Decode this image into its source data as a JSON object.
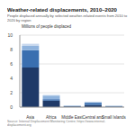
{
  "chart_data": {
    "type": "bar",
    "stacked": true,
    "title": "Weather-related displacements, 2010–2020",
    "subtitle": "People displaced annually by selected weather-related events from 2010 to 2020 by region",
    "y_label": "Millions of people displaced",
    "source": "Source: Internal Displacement Monitoring Centre; https://www.internal-displacement.org",
    "categories": [
      "Asia",
      "Africa",
      "Middle East",
      "Central and South America",
      "Small Islands"
    ],
    "series": [
      {
        "color": "#1f3a68",
        "values": [
          5.5,
          0.9,
          0.1,
          0.3,
          0.05
        ]
      },
      {
        "color": "#3a6fb0",
        "values": [
          2.4,
          0.2,
          0.05,
          0.3,
          0.1
        ]
      },
      {
        "color": "#8fb3dd",
        "values": [
          0.6,
          0.5,
          0.05,
          0.1,
          0.02
        ]
      },
      {
        "color": "#c9d9ee",
        "values": [
          0.3,
          0.1,
          0.02,
          0.05,
          0.01
        ]
      }
    ],
    "ylim": [
      0,
      10
    ],
    "yticks": [
      0,
      2,
      4,
      6,
      8,
      10
    ],
    "grid": true
  }
}
